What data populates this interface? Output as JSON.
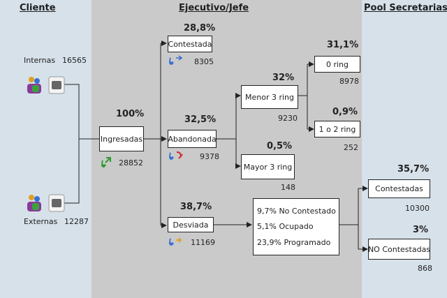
{
  "headers": {
    "client": "Cliente",
    "executive": "Ejecutivo/Jefe",
    "pool": "Pool Secretarias"
  },
  "client": {
    "internal": {
      "label": "Internas",
      "count": "16565"
    },
    "external": {
      "label": "Externas",
      "count": "12287"
    }
  },
  "ingresadas": {
    "label": "Ingresadas",
    "pct": "100%",
    "count": "28852"
  },
  "contestada": {
    "label": "Contestada",
    "pct": "28,8%",
    "count": "8305"
  },
  "abandonada": {
    "label": "Abandonada",
    "pct": "32,5%",
    "count": "9378"
  },
  "desviada": {
    "label": "Desviada",
    "pct": "38,7%",
    "count": "11169"
  },
  "menor3": {
    "label": "Menor 3 ring",
    "pct": "32%",
    "count": "9230"
  },
  "mayor3": {
    "label": "Mayor 3 ring",
    "pct": "0,5%",
    "count": "148"
  },
  "ring0": {
    "label": "0 ring",
    "pct": "31,1%",
    "count": "8978"
  },
  "ring12": {
    "label": "1 o 2 ring",
    "pct": "0,9%",
    "count": "252"
  },
  "desvio_detail": [
    "9,7% No Contestado",
    "5,1% Ocupado",
    "23,9% Programado"
  ],
  "pool_contestadas": {
    "label": "Contestadas",
    "pct": "35,7%",
    "count": "10300"
  },
  "pool_no_contestadas": {
    "label": "NO Contestadas",
    "pct": "3%",
    "count": "868"
  },
  "colors": {
    "client_bg": "#d6e1ea",
    "exec_bg": "#cacaca"
  }
}
